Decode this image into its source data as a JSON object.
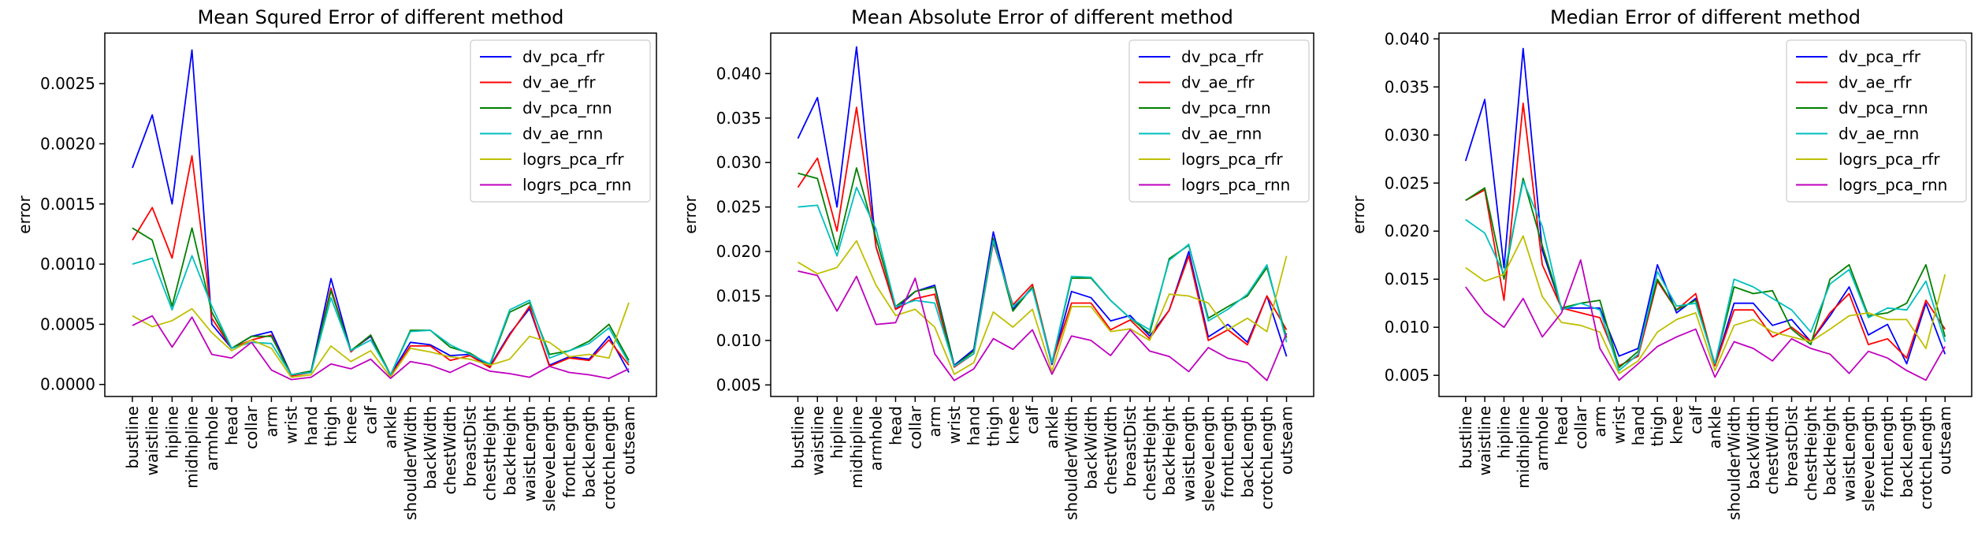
{
  "chart_data": [
    {
      "type": "line",
      "title": "Mean Squred Error of different method",
      "xlabel": "",
      "ylabel": "error",
      "ylim": [
        -0.0001,
        0.00292
      ],
      "yticks": [
        0.0,
        0.0005,
        0.001,
        0.0015,
        0.002,
        0.0025
      ],
      "ytick_labels": [
        "0.0000",
        "0.0005",
        "0.0010",
        "0.0015",
        "0.0020",
        "0.0025"
      ],
      "legend_position": "top-right",
      "categories": [
        "bustline",
        "waistline",
        "hipline",
        "midhipline",
        "armhole",
        "head",
        "collar",
        "arm",
        "wrist",
        "hand",
        "thigh",
        "knee",
        "calf",
        "ankle",
        "shoulderWidth",
        "backWidth",
        "chestWidth",
        "breastDist",
        "chestHeight",
        "backHeight",
        "waistLength",
        "sleeveLength",
        "frontLength",
        "backLength",
        "crotchLength",
        "outseam"
      ],
      "series": [
        {
          "name": "dv_pca_rfr",
          "color": "#0000ff",
          "values": [
            0.0018,
            0.00224,
            0.0015,
            0.00278,
            0.0005,
            0.0003,
            0.0004,
            0.00044,
            8e-05,
            0.00011,
            0.00088,
            0.00028,
            0.0004,
            8e-05,
            0.00035,
            0.00033,
            0.00024,
            0.00025,
            0.00015,
            0.00042,
            0.00063,
            0.00016,
            0.00023,
            0.00021,
            0.0004,
            0.0001
          ]
        },
        {
          "name": "dv_ae_rfr",
          "color": "#ff0000",
          "values": [
            0.0012,
            0.00147,
            0.00105,
            0.0019,
            0.00055,
            0.0003,
            0.00037,
            0.00041,
            7e-05,
            0.0001,
            0.0008,
            0.00027,
            0.00041,
            7e-05,
            0.00032,
            0.00032,
            0.0002,
            0.00024,
            0.00014,
            0.00041,
            0.00065,
            0.00015,
            0.00022,
            0.0002,
            0.00037,
            0.00016
          ]
        },
        {
          "name": "dv_pca_rnn",
          "color": "#008000",
          "values": [
            0.0013,
            0.0012,
            0.00065,
            0.0013,
            0.0006,
            0.0003,
            0.0004,
            0.0004,
            8e-05,
            0.00011,
            0.00078,
            0.00028,
            0.00041,
            8e-05,
            0.00045,
            0.00045,
            0.00031,
            0.00026,
            0.00016,
            0.0006,
            0.00068,
            0.00025,
            0.00028,
            0.00036,
            0.0005,
            0.0002
          ]
        },
        {
          "name": "dv_ae_rnn",
          "color": "#00bfbf",
          "values": [
            0.001,
            0.00105,
            0.00062,
            0.00107,
            0.00065,
            0.0003,
            0.00035,
            0.00034,
            8e-05,
            0.0001,
            0.00072,
            0.00028,
            0.00037,
            8e-05,
            0.00044,
            0.00045,
            0.00033,
            0.00025,
            0.00017,
            0.00062,
            0.0007,
            0.00022,
            0.00028,
            0.00034,
            0.00047,
            0.00018
          ]
        },
        {
          "name": "logrs_pca_rfr",
          "color": "#bfbf00",
          "values": [
            0.00057,
            0.00048,
            0.00053,
            0.00063,
            0.00043,
            0.00028,
            0.00037,
            0.0003,
            6e-05,
            8e-05,
            0.00032,
            0.00019,
            0.00028,
            6e-05,
            0.0003,
            0.00027,
            0.00023,
            0.00021,
            0.00016,
            0.00021,
            0.0004,
            0.00035,
            0.00023,
            0.00025,
            0.00022,
            0.00068
          ]
        },
        {
          "name": "logrs_pca_rnn",
          "color": "#bf00bf",
          "values": [
            0.00049,
            0.00057,
            0.00031,
            0.00056,
            0.00025,
            0.00022,
            0.00035,
            0.00012,
            4e-05,
            6e-05,
            0.00017,
            0.00013,
            0.00021,
            5e-05,
            0.00019,
            0.00016,
            0.0001,
            0.00018,
            0.00011,
            9e-05,
            6e-05,
            0.00015,
            0.0001,
            8e-05,
            5e-05,
            0.00013
          ]
        }
      ]
    },
    {
      "type": "line",
      "title": "Mean Absolute Error of different method",
      "xlabel": "",
      "ylabel": "error",
      "ylim": [
        0.0037,
        0.04455
      ],
      "yticks": [
        0.005,
        0.01,
        0.015,
        0.02,
        0.025,
        0.03,
        0.035,
        0.04
      ],
      "ytick_labels": [
        "0.005",
        "0.010",
        "0.015",
        "0.020",
        "0.025",
        "0.030",
        "0.035",
        "0.040"
      ],
      "legend_position": "top-right",
      "categories": [
        "bustline",
        "waistline",
        "hipline",
        "midhipline",
        "armhole",
        "head",
        "collar",
        "arm",
        "wrist",
        "hand",
        "thigh",
        "knee",
        "calf",
        "ankle",
        "shoulderWidth",
        "backWidth",
        "chestWidth",
        "breastDist",
        "chestHeight",
        "backHeight",
        "waistLength",
        "sleeveLength",
        "frontLength",
        "backLength",
        "crotchLength",
        "outseam"
      ],
      "series": [
        {
          "name": "dv_pca_rfr",
          "color": "#0000ff",
          "values": [
            0.0327,
            0.0373,
            0.025,
            0.043,
            0.0205,
            0.0135,
            0.0155,
            0.0162,
            0.0072,
            0.009,
            0.0222,
            0.0135,
            0.016,
            0.0073,
            0.0155,
            0.0148,
            0.0122,
            0.0128,
            0.0105,
            0.0134,
            0.02,
            0.0104,
            0.0118,
            0.0098,
            0.015,
            0.0082
          ]
        },
        {
          "name": "dv_ae_rfr",
          "color": "#ff0000",
          "values": [
            0.0272,
            0.0305,
            0.0223,
            0.0362,
            0.0205,
            0.0135,
            0.0147,
            0.0152,
            0.007,
            0.0085,
            0.021,
            0.014,
            0.0163,
            0.0075,
            0.0142,
            0.0142,
            0.0112,
            0.0123,
            0.0102,
            0.0134,
            0.0195,
            0.01,
            0.0112,
            0.0095,
            0.015,
            0.0112
          ]
        },
        {
          "name": "dv_pca_rnn",
          "color": "#008000",
          "values": [
            0.0288,
            0.0282,
            0.0202,
            0.0294,
            0.0215,
            0.0138,
            0.0155,
            0.016,
            0.0071,
            0.0088,
            0.0215,
            0.0133,
            0.016,
            0.0075,
            0.017,
            0.017,
            0.0145,
            0.0125,
            0.0108,
            0.0192,
            0.0207,
            0.0125,
            0.0138,
            0.015,
            0.0182,
            0.0103
          ]
        },
        {
          "name": "dv_ae_rnn",
          "color": "#00bfbf",
          "values": [
            0.025,
            0.0252,
            0.0195,
            0.0272,
            0.0225,
            0.0138,
            0.0145,
            0.0142,
            0.0071,
            0.0085,
            0.0212,
            0.0138,
            0.0158,
            0.0075,
            0.0172,
            0.0171,
            0.0145,
            0.0125,
            0.0112,
            0.019,
            0.0208,
            0.0122,
            0.0135,
            0.0152,
            0.0185,
            0.0098
          ]
        },
        {
          "name": "logrs_pca_rfr",
          "color": "#bfbf00",
          "values": [
            0.0188,
            0.0175,
            0.0182,
            0.0212,
            0.0162,
            0.0128,
            0.0135,
            0.0115,
            0.0062,
            0.0075,
            0.0132,
            0.0115,
            0.0135,
            0.0065,
            0.0138,
            0.0138,
            0.011,
            0.0113,
            0.01,
            0.0152,
            0.015,
            0.0142,
            0.0112,
            0.0125,
            0.011,
            0.0195
          ]
        },
        {
          "name": "logrs_pca_rnn",
          "color": "#bf00bf",
          "values": [
            0.0178,
            0.0173,
            0.0133,
            0.0172,
            0.0118,
            0.012,
            0.017,
            0.0085,
            0.0055,
            0.0068,
            0.0102,
            0.009,
            0.0112,
            0.0062,
            0.0105,
            0.01,
            0.0083,
            0.0112,
            0.0088,
            0.0082,
            0.0065,
            0.0092,
            0.008,
            0.0075,
            0.0055,
            0.0108
          ]
        }
      ]
    },
    {
      "type": "line",
      "title": "Median Error of different method",
      "xlabel": "",
      "ylabel": "error",
      "ylim": [
        0.0028,
        0.0406
      ],
      "yticks": [
        0.005,
        0.01,
        0.015,
        0.02,
        0.025,
        0.03,
        0.035,
        0.04
      ],
      "ytick_labels": [
        "0.005",
        "0.010",
        "0.015",
        "0.020",
        "0.025",
        "0.030",
        "0.035",
        "0.040"
      ],
      "legend_position": "top-right",
      "categories": [
        "bustline",
        "waistline",
        "hipline",
        "midhipline",
        "armhole",
        "head",
        "collar",
        "arm",
        "wrist",
        "hand",
        "thigh",
        "knee",
        "calf",
        "ankle",
        "shoulderWidth",
        "backWidth",
        "chestWidth",
        "breastDist",
        "chestHeight",
        "backHeight",
        "waistLength",
        "sleeveLength",
        "frontLength",
        "backLength",
        "crotchLength",
        "outseam"
      ],
      "series": [
        {
          "name": "dv_pca_rfr",
          "color": "#0000ff",
          "values": [
            0.0273,
            0.0337,
            0.0162,
            0.039,
            0.018,
            0.012,
            0.012,
            0.012,
            0.007,
            0.0078,
            0.0165,
            0.0115,
            0.013,
            0.006,
            0.0125,
            0.0125,
            0.0102,
            0.0108,
            0.0085,
            0.0112,
            0.0142,
            0.0092,
            0.0103,
            0.0062,
            0.0125,
            0.0072
          ]
        },
        {
          "name": "dv_ae_rfr",
          "color": "#ff0000",
          "values": [
            0.0232,
            0.0243,
            0.0128,
            0.0333,
            0.0165,
            0.012,
            0.0115,
            0.011,
            0.006,
            0.007,
            0.0148,
            0.0118,
            0.0135,
            0.006,
            0.0118,
            0.0118,
            0.009,
            0.01,
            0.0085,
            0.0115,
            0.0135,
            0.0082,
            0.0088,
            0.0068,
            0.0128,
            0.0098
          ]
        },
        {
          "name": "dv_pca_rnn",
          "color": "#008000",
          "values": [
            0.0232,
            0.0245,
            0.015,
            0.0255,
            0.0185,
            0.012,
            0.0125,
            0.0128,
            0.0058,
            0.0075,
            0.015,
            0.0118,
            0.0128,
            0.0062,
            0.0142,
            0.0135,
            0.0138,
            0.0098,
            0.0082,
            0.015,
            0.0165,
            0.0112,
            0.0115,
            0.0125,
            0.0165,
            0.009
          ]
        },
        {
          "name": "dv_ae_rnn",
          "color": "#00bfbf",
          "values": [
            0.0212,
            0.0198,
            0.0155,
            0.0252,
            0.0205,
            0.0118,
            0.0125,
            0.0118,
            0.0055,
            0.0072,
            0.0158,
            0.0122,
            0.0125,
            0.0062,
            0.015,
            0.0142,
            0.013,
            0.0118,
            0.0095,
            0.0145,
            0.016,
            0.011,
            0.012,
            0.0118,
            0.0148,
            0.0085
          ]
        },
        {
          "name": "logrs_pca_rfr",
          "color": "#bfbf00",
          "values": [
            0.0162,
            0.0148,
            0.0155,
            0.0195,
            0.0132,
            0.0105,
            0.0102,
            0.0095,
            0.0052,
            0.0065,
            0.0095,
            0.0108,
            0.0115,
            0.0055,
            0.0102,
            0.0108,
            0.0095,
            0.009,
            0.0085,
            0.0098,
            0.0112,
            0.0115,
            0.0108,
            0.0108,
            0.0078,
            0.0155
          ]
        },
        {
          "name": "logrs_pca_rnn",
          "color": "#bf00bf",
          "values": [
            0.0142,
            0.0115,
            0.01,
            0.013,
            0.009,
            0.0115,
            0.017,
            0.0078,
            0.0045,
            0.0062,
            0.008,
            0.009,
            0.0098,
            0.0048,
            0.0085,
            0.0078,
            0.0065,
            0.0088,
            0.0078,
            0.0072,
            0.0052,
            0.0075,
            0.0068,
            0.0055,
            0.0045,
            0.008
          ]
        }
      ]
    }
  ]
}
